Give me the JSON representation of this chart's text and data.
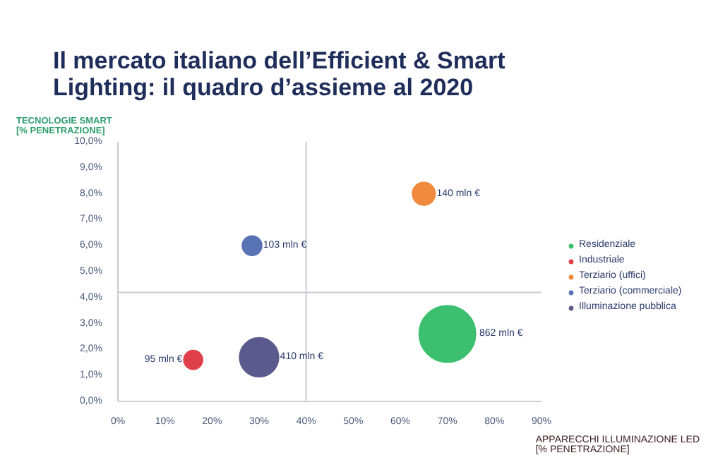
{
  "chart_data": {
    "type": "bubble",
    "title": "Il mercato italiano dell’Efficient & Smart Lighting: il quadro d’assieme al 2020",
    "ylabel": "TECNOLOGIE SMART [% PENETRAZIONE]",
    "xlabel": "APPARECCHI ILLUMINAZIONE LED [% PENETRAZIONE]",
    "series": [
      {
        "name": "Residenziale",
        "color": "#3cbf6e",
        "x": [
          70
        ],
        "values": [
          2.6
        ],
        "sizes": [
          1
        ]
      },
      {
        "name": "Industriale",
        "color": "#e0404a",
        "x": [
          16
        ],
        "values": [
          1.6
        ],
        "sizes": [
          0.11
        ]
      },
      {
        "name": "Terziario (uffici)",
        "color": "#f08a3c",
        "x": [
          65
        ],
        "values": [
          8.0
        ],
        "sizes": [
          0.162
        ]
      },
      {
        "name": "Terziario (commerciale)",
        "color": "#5873b3",
        "x": [
          28.5
        ],
        "values": [
          6.0
        ],
        "sizes": [
          0.119
        ]
      },
      {
        "name": "Illuminazione pubblica",
        "color": "#5b5a8c",
        "x": [
          30
        ],
        "values": [
          1.7
        ],
        "sizes": [
          0.476
        ]
      }
    ],
    "annotations": [
      {
        "text": "862 mln €",
        "x": 76.5,
        "y": 2.6
      },
      {
        "text": "95 mln €",
        "x": 16,
        "y": 1.6
      },
      {
        "text": "140 mln €",
        "x": 65,
        "y": 8.0
      },
      {
        "text": "103 mln €",
        "x": 28.5,
        "y": 6.0
      },
      {
        "text": "410 mln €",
        "x": 30,
        "y": 1.7
      }
    ],
    "xlim": [
      0,
      90
    ],
    "xticks": [
      {
        "value": 0,
        "label": "0%"
      },
      {
        "value": 10,
        "label": "10%"
      },
      {
        "value": 20,
        "label": "20%"
      },
      {
        "value": 30,
        "label": "30%"
      },
      {
        "value": 40,
        "label": "40%"
      },
      {
        "value": 50,
        "label": "50%"
      },
      {
        "value": 60,
        "label": "60%"
      },
      {
        "value": 70,
        "label": "70%"
      },
      {
        "value": 80,
        "label": "80%"
      },
      {
        "value": 90,
        "label": "90%"
      }
    ],
    "ylim": [
      0,
      10
    ],
    "yticks": [
      {
        "value": 0,
        "label": "0,0%"
      },
      {
        "value": 1,
        "label": "1,0%"
      },
      {
        "value": 2,
        "label": "2,0%"
      },
      {
        "value": 3,
        "label": "3,0%"
      },
      {
        "value": 4,
        "label": "4,0%"
      },
      {
        "value": 5,
        "label": "5,0%"
      },
      {
        "value": 6,
        "label": "6,0%"
      },
      {
        "value": 7,
        "label": "7,0%"
      },
      {
        "value": 8,
        "label": "8,0%"
      },
      {
        "value": 9,
        "label": "9,0%"
      },
      {
        "value": 10,
        "label": "10,0%"
      }
    ],
    "ref_lines": [
      {
        "axis": "x",
        "value": 40,
        "color": "#c8ccd4"
      },
      {
        "axis": "y",
        "value": 4.2,
        "color": "#c8ccd4"
      }
    ],
    "grid": false,
    "legend": "right",
    "marker": "circle"
  }
}
